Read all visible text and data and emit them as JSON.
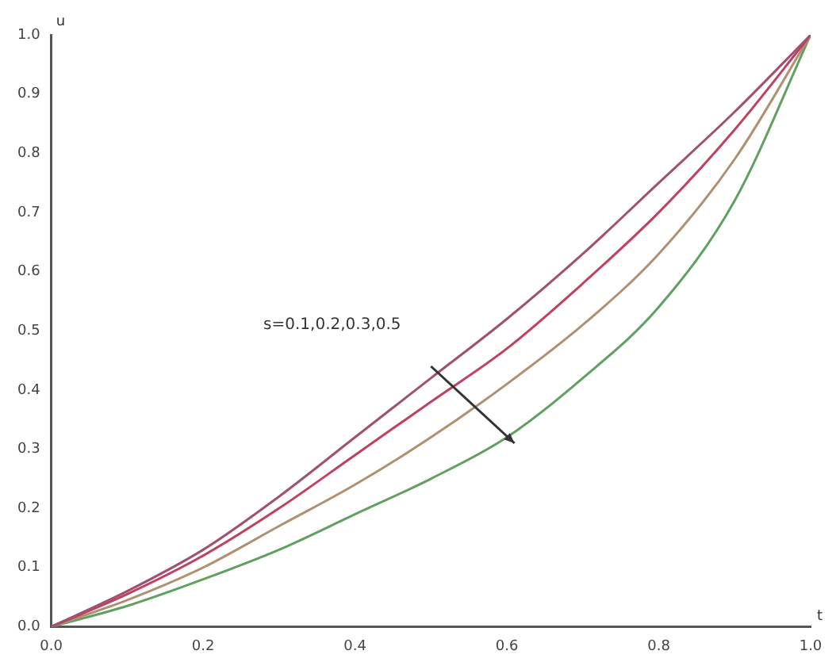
{
  "chart_data": {
    "type": "line",
    "xlabel": "t",
    "ylabel": "u",
    "x": [
      0,
      0.1,
      0.2,
      0.3,
      0.4,
      0.5,
      0.6,
      0.7,
      0.8,
      0.9,
      1
    ],
    "series": [
      {
        "color": "#a05070",
        "values": [
          0,
          0.06,
          0.13,
          0.22,
          0.32,
          0.42,
          0.52,
          0.63,
          0.75,
          0.87,
          1
        ]
      },
      {
        "color": "#c04060",
        "values": [
          0,
          0.055,
          0.12,
          0.2,
          0.29,
          0.38,
          0.47,
          0.58,
          0.7,
          0.84,
          1
        ]
      },
      {
        "color": "#b09070",
        "values": [
          0,
          0.045,
          0.1,
          0.17,
          0.24,
          0.32,
          0.41,
          0.51,
          0.63,
          0.79,
          1
        ]
      },
      {
        "color": "#60a060",
        "values": [
          0,
          0.035,
          0.08,
          0.13,
          0.19,
          0.25,
          0.32,
          0.42,
          0.54,
          0.72,
          1
        ]
      }
    ],
    "xlim": [
      0,
      1
    ],
    "ylim": [
      0,
      1
    ],
    "xticks": [
      {
        "value": 0,
        "label": "0.0"
      },
      0.2,
      0.4,
      0.6,
      0.8,
      {
        "value": 1,
        "label": "1.0"
      }
    ],
    "yticks": [
      {
        "value": 0,
        "label": "0.0"
      },
      0.1,
      0.2,
      0.3,
      0.4,
      0.5,
      0.6,
      0.7,
      0.8,
      0.9,
      {
        "value": 1,
        "label": "1.0"
      }
    ],
    "annotations": [
      "s=0.1,0.2,0.3,0.5"
    ],
    "grid": false,
    "legend": false,
    "marker": "none",
    "line_style": "solid"
  }
}
